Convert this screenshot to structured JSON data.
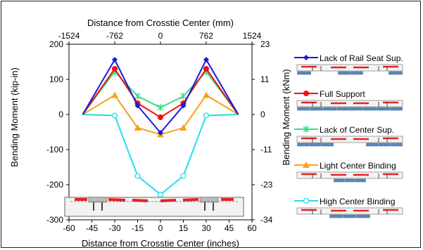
{
  "chart_data": {
    "type": "line",
    "title": "",
    "xlabel": "Distance from Crosstie Center (inches)",
    "ylabel": "Bending Moment (kip-in)",
    "x2label": "Distance from Crosstie Center (mm)",
    "y2label": "Bending Moment (kNm)",
    "xlim": [
      -60,
      60
    ],
    "ylim": [
      -300,
      200
    ],
    "x_ticks": [
      -60,
      -45,
      -30,
      -15,
      0,
      15,
      30,
      45,
      60
    ],
    "y_ticks": [
      -300,
      -200,
      -100,
      0,
      100,
      200
    ],
    "x2_ticks": [
      {
        "label": "-1524",
        "at": -60
      },
      {
        "label": "-762",
        "at": -30
      },
      {
        "label": "0",
        "at": 0
      },
      {
        "label": "762",
        "at": 30
      },
      {
        "label": "1524",
        "at": 60
      }
    ],
    "y2_ticks": [
      {
        "label": "23",
        "at": 200
      },
      {
        "label": "11",
        "at": 100
      },
      {
        "label": "0",
        "at": 0
      },
      {
        "label": "-11",
        "at": -100
      },
      {
        "label": "-23",
        "at": -200
      },
      {
        "label": "-34",
        "at": -300
      }
    ],
    "grid": false,
    "legend": "right",
    "x": [
      -51,
      -30,
      -15,
      0,
      15,
      30,
      51
    ],
    "series": [
      {
        "name": "Lack of Rail Seat Sup.",
        "color": "#1a1adb",
        "marker": "diamond",
        "values": [
          0,
          156,
          25,
          -52,
          25,
          156,
          0
        ]
      },
      {
        "name": "Full Support",
        "color": "#ee1111",
        "marker": "circle",
        "values": [
          0,
          130,
          32,
          -8,
          32,
          130,
          0
        ]
      },
      {
        "name": "Lack of Center Sup.",
        "color": "#3fdc84",
        "marker": "asterisk",
        "values": [
          0,
          122,
          52,
          20,
          52,
          122,
          0
        ]
      },
      {
        "name": "Light Center Binding",
        "color": "#f7a21b",
        "marker": "triangle",
        "values": [
          0,
          55,
          -38,
          -57,
          -38,
          55,
          0
        ]
      },
      {
        "name": "High Center Binding",
        "color": "#25dcea",
        "marker": "open-circle",
        "values": [
          0,
          -3,
          -175,
          -228,
          -175,
          -3,
          0
        ]
      }
    ]
  }
}
